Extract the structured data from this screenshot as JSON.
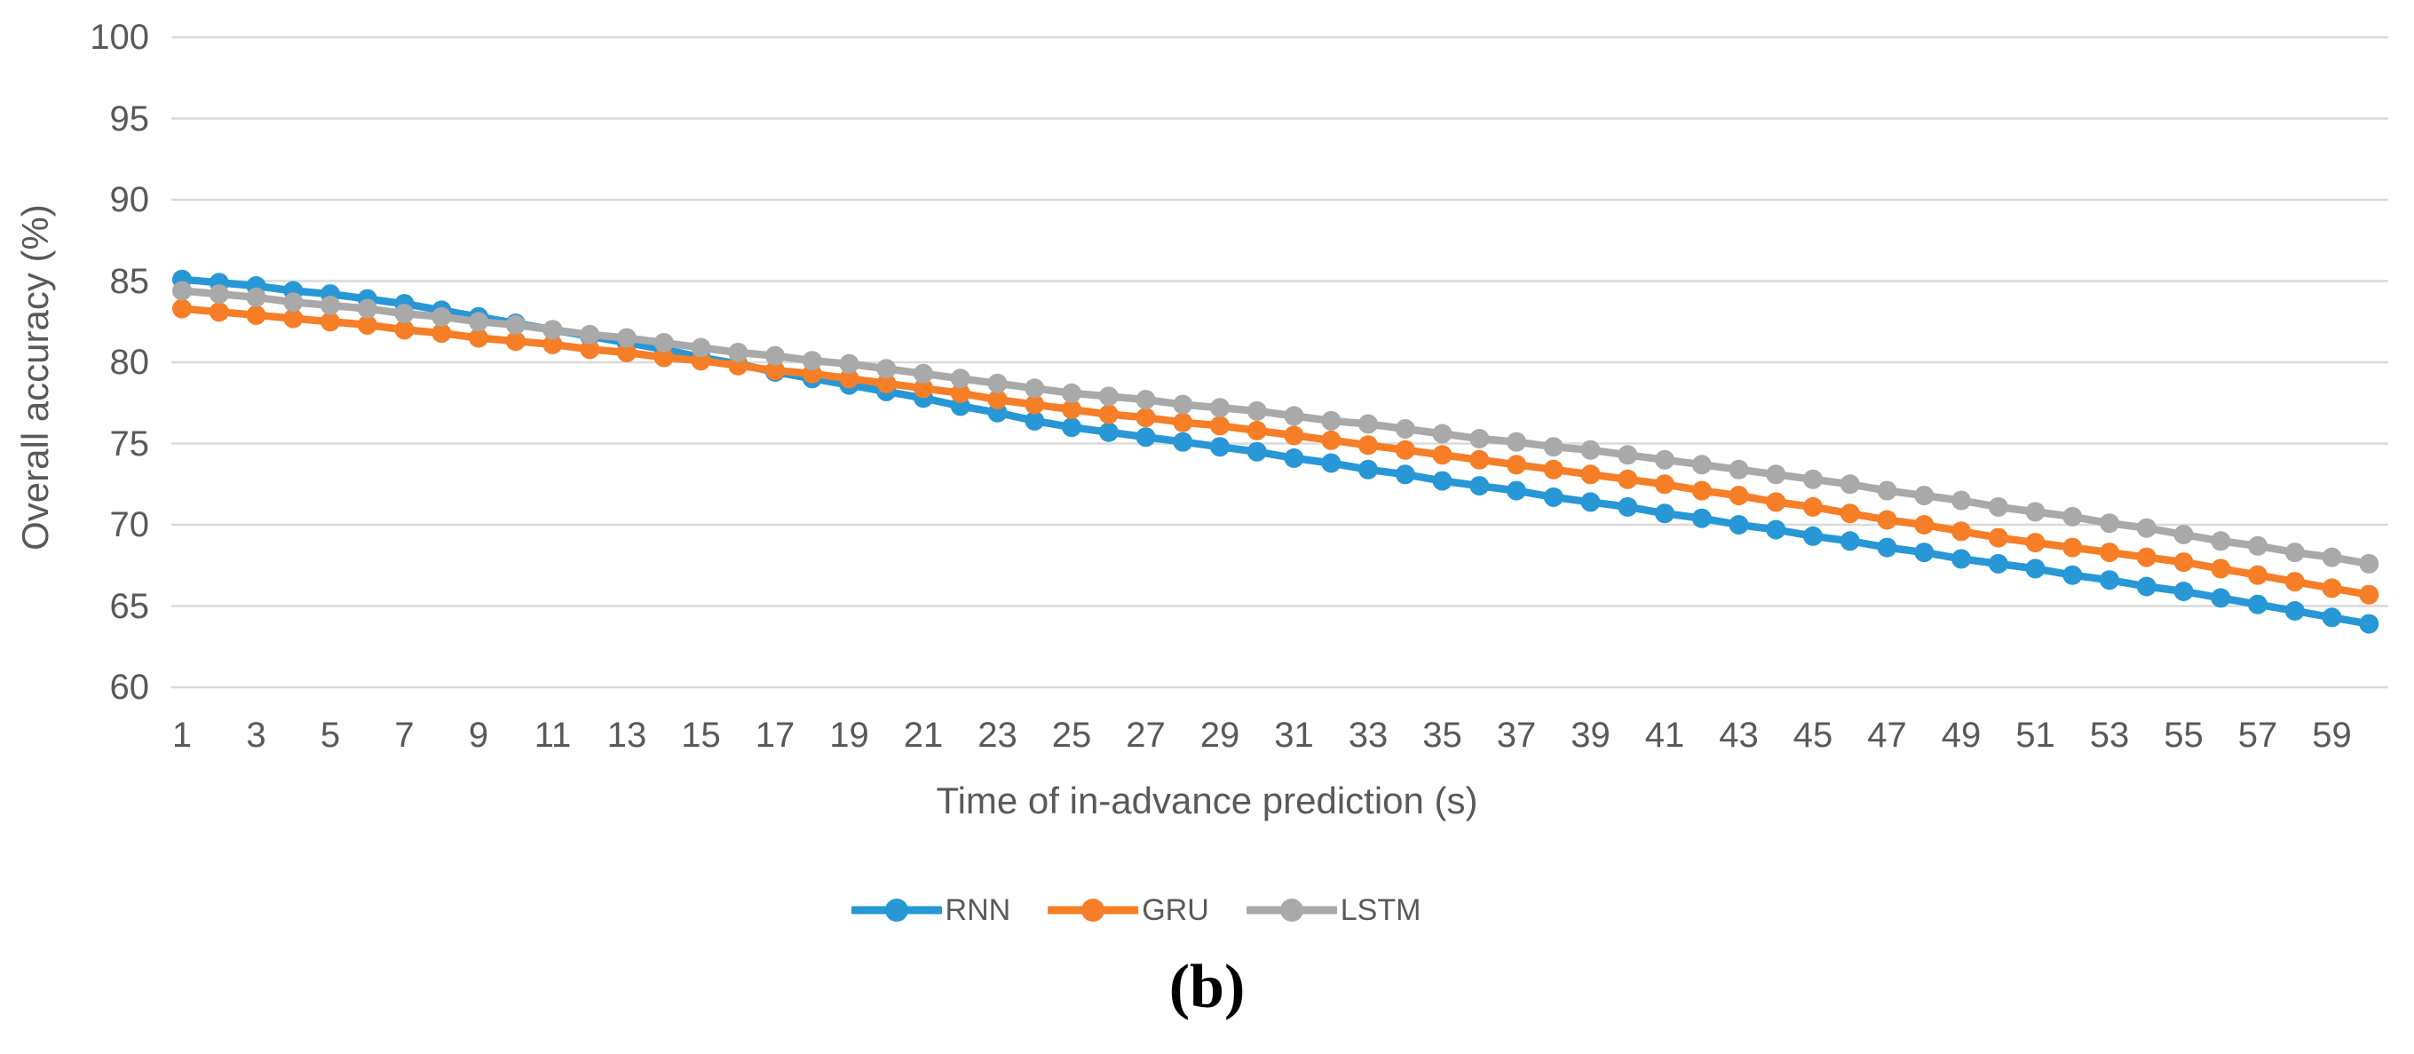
{
  "figure": {
    "caption": "(b)"
  },
  "colors": {
    "text": "#595959",
    "gridline": "#DADADA",
    "background": "#FFFFFF"
  },
  "chart_data": {
    "type": "line",
    "title": "",
    "xlabel": "Time of in-advance prediction (s)",
    "ylabel": "Overall accuracy (%)",
    "ylim": [
      60,
      100
    ],
    "y_ticks": [
      60,
      65,
      70,
      75,
      80,
      85,
      90,
      95,
      100
    ],
    "x_tick_labels": [
      1,
      3,
      5,
      7,
      9,
      11,
      13,
      15,
      17,
      19,
      21,
      23,
      25,
      27,
      29,
      31,
      33,
      35,
      37,
      39,
      41,
      43,
      45,
      47,
      49,
      51,
      53,
      55,
      57,
      59
    ],
    "x": [
      1,
      2,
      3,
      4,
      5,
      6,
      7,
      8,
      9,
      10,
      11,
      12,
      13,
      14,
      15,
      16,
      17,
      18,
      19,
      20,
      21,
      22,
      23,
      24,
      25,
      26,
      27,
      28,
      29,
      30,
      31,
      32,
      33,
      34,
      35,
      36,
      37,
      38,
      39,
      40,
      41,
      42,
      43,
      44,
      45,
      46,
      47,
      48,
      49,
      50,
      51,
      52,
      53,
      54,
      55,
      56,
      57,
      58,
      59,
      60
    ],
    "grid": "horizontal",
    "legend_position": "bottom",
    "marker": "circle",
    "series": [
      {
        "name": "RNN",
        "color": "#2797D6",
        "values": [
          85.1,
          84.9,
          84.7,
          84.4,
          84.2,
          83.9,
          83.6,
          83.2,
          82.8,
          82.4,
          82.0,
          81.6,
          81.2,
          80.8,
          80.3,
          79.9,
          79.4,
          79.0,
          78.6,
          78.2,
          77.8,
          77.3,
          76.9,
          76.4,
          76.0,
          75.7,
          75.4,
          75.1,
          74.8,
          74.5,
          74.1,
          73.8,
          73.4,
          73.1,
          72.7,
          72.4,
          72.1,
          71.7,
          71.4,
          71.1,
          70.7,
          70.4,
          70.0,
          69.7,
          69.3,
          69.0,
          68.6,
          68.3,
          67.9,
          67.6,
          67.3,
          66.9,
          66.6,
          66.2,
          65.9,
          65.5,
          65.1,
          64.7,
          64.3,
          63.9
        ]
      },
      {
        "name": "GRU",
        "color": "#F57E27",
        "values": [
          83.3,
          83.1,
          82.9,
          82.7,
          82.5,
          82.3,
          82.0,
          81.8,
          81.5,
          81.3,
          81.1,
          80.8,
          80.6,
          80.3,
          80.1,
          79.8,
          79.5,
          79.3,
          79.0,
          78.7,
          78.4,
          78.1,
          77.7,
          77.4,
          77.1,
          76.8,
          76.6,
          76.3,
          76.1,
          75.8,
          75.5,
          75.2,
          74.9,
          74.6,
          74.3,
          74.0,
          73.7,
          73.4,
          73.1,
          72.8,
          72.5,
          72.1,
          71.8,
          71.4,
          71.1,
          70.7,
          70.3,
          70.0,
          69.6,
          69.2,
          68.9,
          68.6,
          68.3,
          68.0,
          67.7,
          67.3,
          66.9,
          66.5,
          66.1,
          65.7
        ]
      },
      {
        "name": "LSTM",
        "color": "#A9A9A9",
        "values": [
          84.4,
          84.2,
          84.0,
          83.7,
          83.5,
          83.3,
          83.0,
          82.8,
          82.5,
          82.3,
          82.0,
          81.7,
          81.5,
          81.2,
          80.9,
          80.6,
          80.4,
          80.1,
          79.9,
          79.6,
          79.3,
          79.0,
          78.7,
          78.4,
          78.1,
          77.9,
          77.7,
          77.4,
          77.2,
          77.0,
          76.7,
          76.4,
          76.2,
          75.9,
          75.6,
          75.3,
          75.1,
          74.8,
          74.6,
          74.3,
          74.0,
          73.7,
          73.4,
          73.1,
          72.8,
          72.5,
          72.1,
          71.8,
          71.5,
          71.1,
          70.8,
          70.5,
          70.1,
          69.8,
          69.4,
          69.0,
          68.7,
          68.3,
          68.0,
          67.6
        ]
      }
    ]
  }
}
